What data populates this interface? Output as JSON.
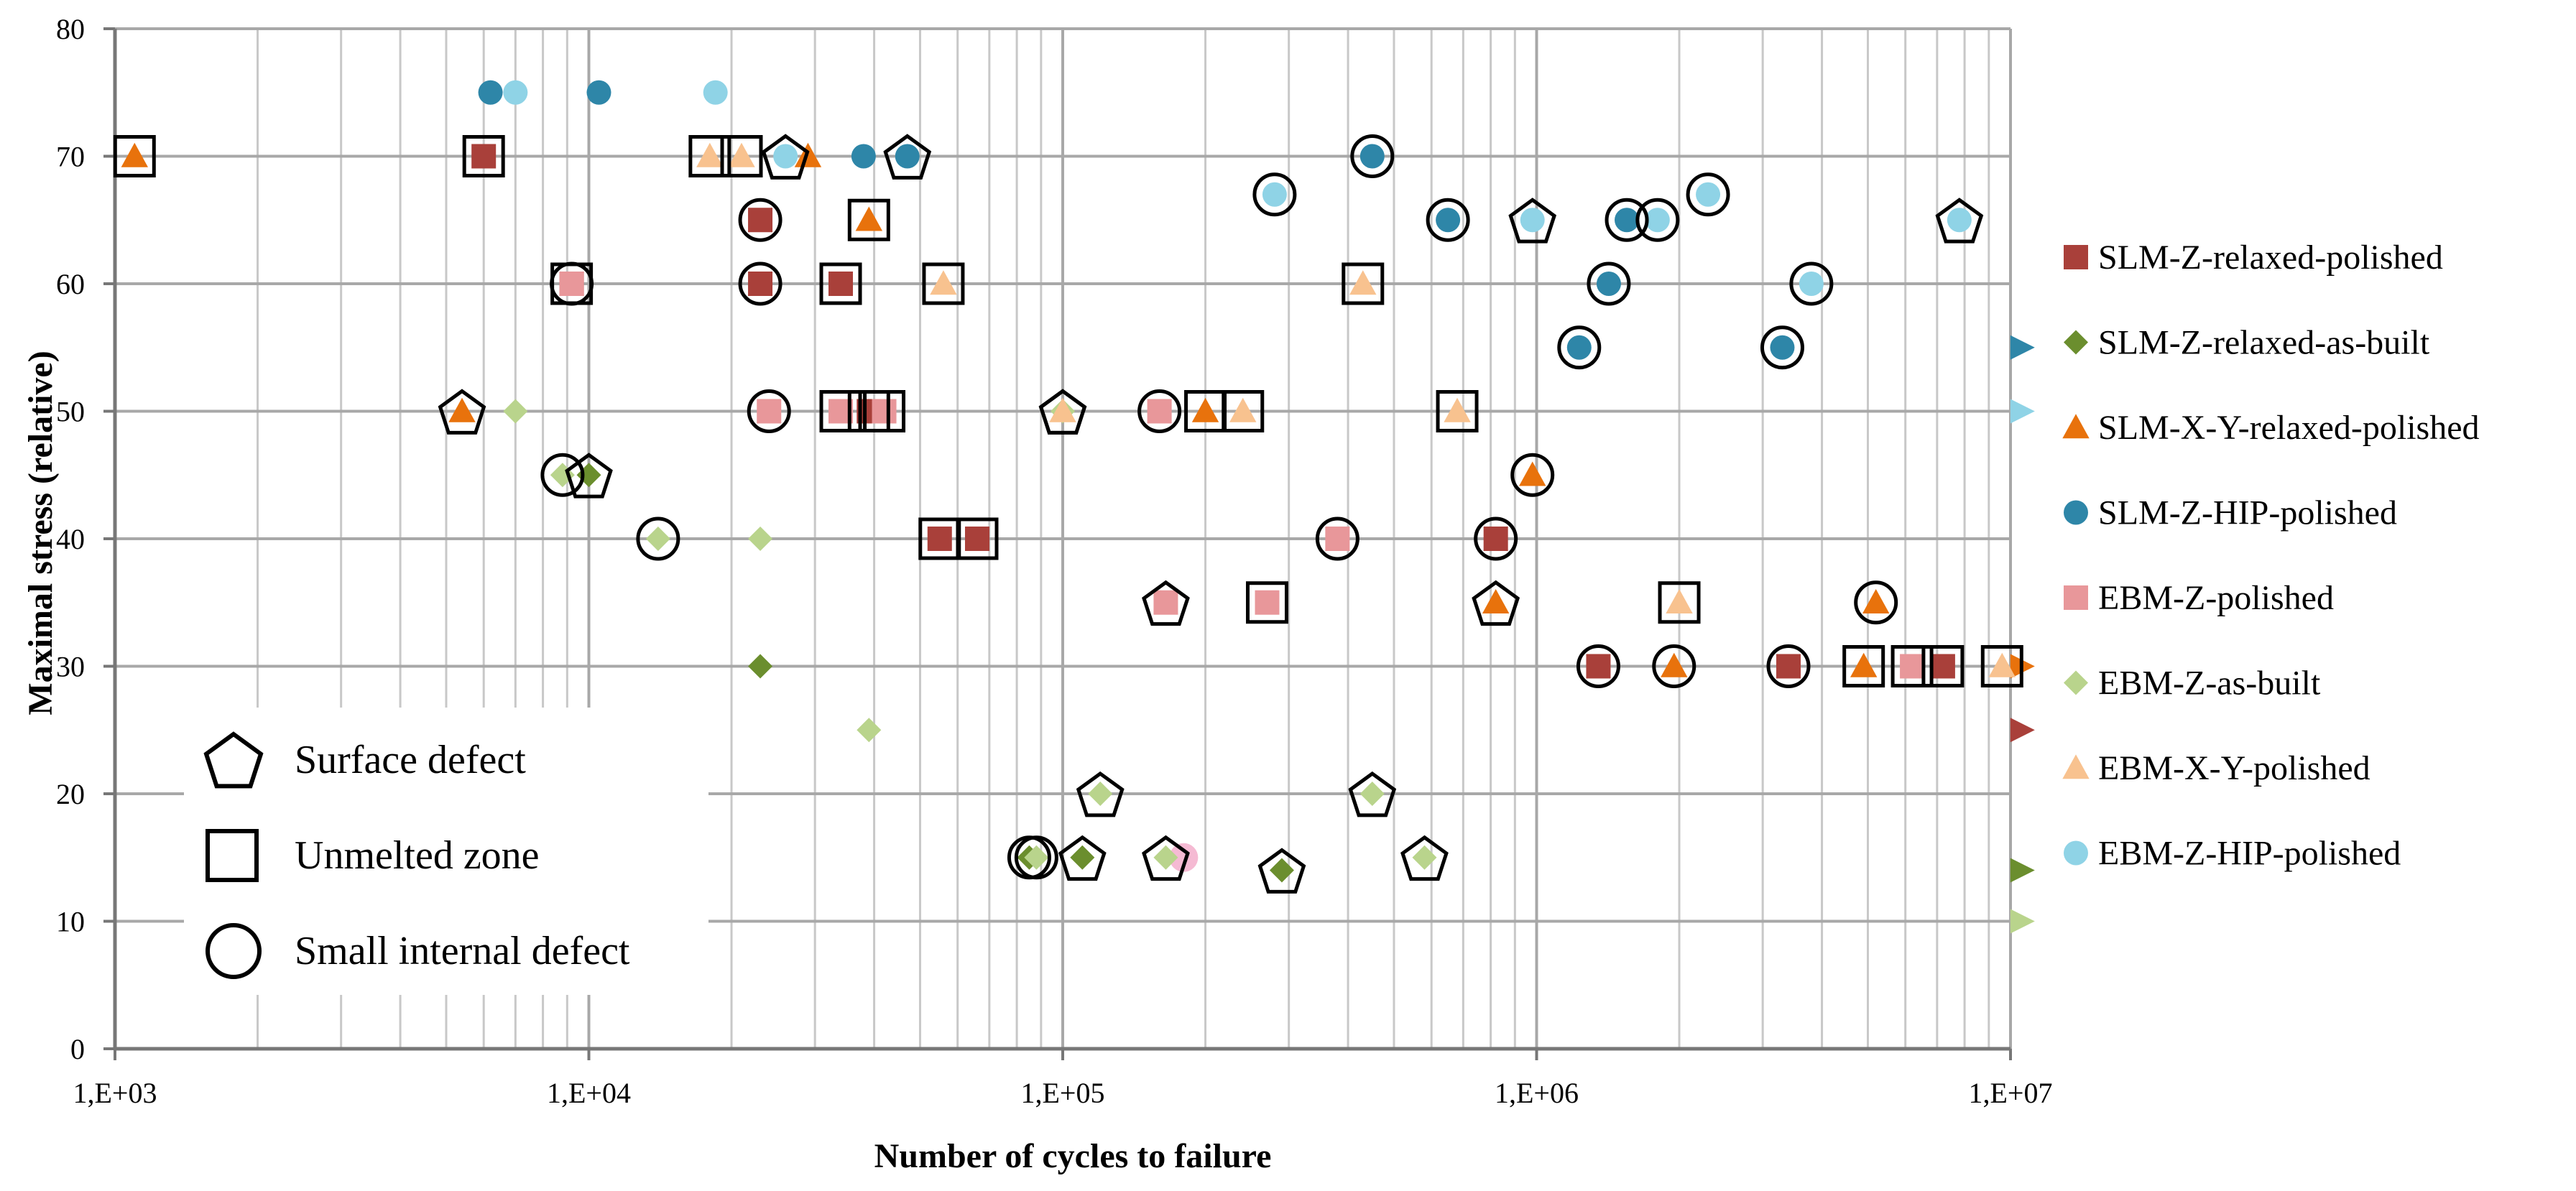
{
  "chart_data": {
    "type": "scatter",
    "x_scale": "log",
    "xlabel": "Number of cycles to failure",
    "ylabel": "Maximal stress (relative)",
    "xlim": [
      1000,
      10000000
    ],
    "ylim": [
      0,
      80
    ],
    "grid": true,
    "x_major_ticks": [
      1000,
      10000,
      100000,
      1000000,
      10000000
    ],
    "x_tick_labels": [
      "1,E+03",
      "1,E+04",
      "1,E+05",
      "1,E+06",
      "1,E+07"
    ],
    "y_ticks": [
      0,
      10,
      20,
      30,
      40,
      50,
      60,
      70,
      80
    ],
    "y_tick_labels": [
      "0",
      "10",
      "20",
      "30",
      "40",
      "50",
      "60",
      "70",
      "80"
    ],
    "legend_position": "right",
    "defect_legend_position": "bottom-left",
    "defect_legend": [
      {
        "label": "Surface defect",
        "shape": "pentagon"
      },
      {
        "label": "Unmelted zone",
        "shape": "square"
      },
      {
        "label": "Small internal defect",
        "shape": "circle"
      }
    ],
    "series": [
      {
        "name": "SLM-Z-relaxed-polished",
        "marker": "square",
        "color": "#a9403a",
        "points": [
          [
            6000,
            70,
            "square"
          ],
          [
            23000,
            65,
            "circle"
          ],
          [
            23000,
            60,
            "circle"
          ],
          [
            9200,
            60,
            "square"
          ],
          [
            34000,
            60,
            "square"
          ],
          [
            39000,
            50,
            "square"
          ],
          [
            55000,
            40,
            "square"
          ],
          [
            66000,
            40,
            "square"
          ],
          [
            820000,
            40,
            "circle"
          ],
          [
            1350000,
            30,
            "circle"
          ],
          [
            3400000,
            30,
            "circle"
          ],
          [
            7200000,
            30,
            "square"
          ],
          [
            10000000,
            25,
            "runout"
          ]
        ]
      },
      {
        "name": "SLM-Z-relaxed-as-built",
        "marker": "diamond",
        "color": "#6b8e2e",
        "points": [
          [
            10000,
            45,
            "pentagon"
          ],
          [
            23000,
            30,
            null
          ],
          [
            110000,
            15,
            "pentagon"
          ],
          [
            85000,
            15,
            "circle"
          ],
          [
            290000,
            14,
            "pentagon"
          ],
          [
            10000000,
            14,
            "runout"
          ]
        ]
      },
      {
        "name": "SLM-X-Y-relaxed-polished",
        "marker": "triangle",
        "color": "#e8720c",
        "points": [
          [
            1100,
            70,
            "square"
          ],
          [
            5400,
            50,
            "pentagon"
          ],
          [
            29000,
            70,
            null
          ],
          [
            39000,
            65,
            "square"
          ],
          [
            200000,
            50,
            "square"
          ],
          [
            980000,
            45,
            "circle"
          ],
          [
            820000,
            35,
            "pentagon"
          ],
          [
            5200000,
            35,
            "circle"
          ],
          [
            1950000,
            30,
            "circle"
          ],
          [
            4900000,
            30,
            "square"
          ],
          [
            10000000,
            30,
            "runout"
          ]
        ]
      },
      {
        "name": "SLM-Z-HIP-polished",
        "marker": "circle",
        "color": "#2e86a8",
        "points": [
          [
            6200,
            75,
            null
          ],
          [
            10500,
            75,
            null
          ],
          [
            38000,
            70,
            null
          ],
          [
            47000,
            70,
            "pentagon"
          ],
          [
            450000,
            70,
            "circle"
          ],
          [
            650000,
            65,
            "circle"
          ],
          [
            1550000,
            65,
            "circle"
          ],
          [
            1420000,
            60,
            "circle"
          ],
          [
            1230000,
            55,
            "circle"
          ],
          [
            3300000,
            55,
            "circle"
          ],
          [
            10000000,
            55,
            "runout"
          ]
        ]
      },
      {
        "name": "EBM-Z-polished",
        "marker": "square",
        "color": "#e8979a",
        "points": [
          [
            9200,
            60,
            "circle"
          ],
          [
            24000,
            50,
            "circle"
          ],
          [
            34000,
            50,
            "square"
          ],
          [
            42000,
            50,
            "square"
          ],
          [
            160000,
            50,
            "circle"
          ],
          [
            380000,
            40,
            "circle"
          ],
          [
            165000,
            35,
            "pentagon"
          ],
          [
            270000,
            35,
            "square"
          ],
          [
            6200000,
            30,
            "square"
          ]
        ]
      },
      {
        "name": "EBM-Z-as-built",
        "marker": "diamond",
        "color": "#b9d48c",
        "points": [
          [
            7000,
            50,
            null
          ],
          [
            8800,
            45,
            "circle"
          ],
          [
            14000,
            40,
            "circle"
          ],
          [
            23000,
            40,
            null
          ],
          [
            39000,
            25,
            null
          ],
          [
            100000,
            50,
            "pentagon"
          ],
          [
            120000,
            20,
            "pentagon"
          ],
          [
            88000,
            15,
            "circle"
          ],
          [
            165000,
            15,
            "pentagon"
          ],
          [
            450000,
            20,
            "pentagon"
          ],
          [
            580000,
            15,
            "pentagon"
          ],
          [
            10000000,
            10,
            "runout"
          ]
        ]
      },
      {
        "name": "EBM-X-Y-polished",
        "marker": "triangle",
        "color": "#f8c28f",
        "points": [
          [
            18000,
            70,
            "square"
          ],
          [
            21000,
            70,
            "square"
          ],
          [
            56000,
            60,
            "square"
          ],
          [
            100000,
            50,
            "pentagon"
          ],
          [
            240000,
            50,
            "square"
          ],
          [
            430000,
            60,
            "square"
          ],
          [
            680000,
            50,
            "square"
          ],
          [
            2000000,
            35,
            "square"
          ],
          [
            9600000,
            30,
            "square"
          ]
        ]
      },
      {
        "name": "EBM-Z-HIP-polished",
        "marker": "circle",
        "color": "#8fd3e6",
        "points": [
          [
            7000,
            75,
            null
          ],
          [
            18500,
            75,
            null
          ],
          [
            26000,
            70,
            "pentagon"
          ],
          [
            280000,
            67,
            "circle"
          ],
          [
            980000,
            65,
            "pentagon"
          ],
          [
            1800000,
            65,
            "circle"
          ],
          [
            2300000,
            67,
            "circle"
          ],
          [
            3800000,
            60,
            "circle"
          ],
          [
            7800000,
            65,
            "pentagon"
          ],
          [
            10000000,
            50,
            "runout"
          ]
        ]
      }
    ],
    "extra_marks": [
      [
        180000,
        15,
        "#f2a9c8"
      ]
    ]
  }
}
